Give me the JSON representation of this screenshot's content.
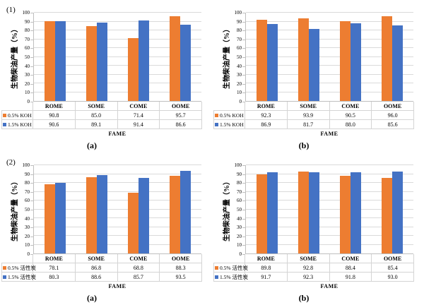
{
  "figure": {
    "group1_label": "(1)",
    "group2_label": "(2)"
  },
  "colors": {
    "series_orange": "#ED7D31",
    "series_blue": "#4472C4",
    "gridline": "#DADADA",
    "axis_line": "#BFBFBF",
    "table_border": "#D4D4D4"
  },
  "chart_data": [
    {
      "type": "bar",
      "group_label": "(1)",
      "sub_label": "(a)",
      "xlabel": "FAME",
      "ylabel": "生物柴油产量（%）",
      "ylim": [
        0,
        100
      ],
      "y_tick_step": 10,
      "grid": true,
      "legend_position": "table-left",
      "categories": [
        "ROME",
        "SOME",
        "COME",
        "OOME"
      ],
      "series": [
        {
          "name": "0.5% KOH",
          "color": "#ED7D31",
          "values": [
            90.8,
            85.0,
            71.4,
            95.7
          ]
        },
        {
          "name": "1.5% KOH",
          "color": "#4472C4",
          "values": [
            90.6,
            89.1,
            91.4,
            86.6
          ]
        }
      ]
    },
    {
      "type": "bar",
      "group_label": "",
      "sub_label": "(b)",
      "xlabel": "FAME",
      "ylabel": "生物柴油产量（%）",
      "ylim": [
        0,
        100
      ],
      "y_tick_step": 10,
      "grid": true,
      "legend_position": "table-left",
      "categories": [
        "ROME",
        "SOME",
        "COME",
        "OOME"
      ],
      "series": [
        {
          "name": "0.5% KOH",
          "color": "#ED7D31",
          "values": [
            92.3,
            93.9,
            90.5,
            96.0
          ]
        },
        {
          "name": "1.5% KOH",
          "color": "#4472C4",
          "values": [
            86.9,
            81.7,
            88.0,
            85.6
          ]
        }
      ]
    },
    {
      "type": "bar",
      "group_label": "(2)",
      "sub_label": "(a)",
      "xlabel": "FAME",
      "ylabel": "生物柴油产量（%）",
      "ylim": [
        0,
        100
      ],
      "y_tick_step": 10,
      "grid": true,
      "legend_position": "table-left",
      "categories": [
        "ROME",
        "SOME",
        "COME",
        "OOME"
      ],
      "series": [
        {
          "name": "0.5% 活性炭",
          "color": "#ED7D31",
          "values": [
            78.1,
            86.8,
            68.8,
            88.3
          ]
        },
        {
          "name": "1.5% 活性炭",
          "color": "#4472C4",
          "values": [
            80.3,
            88.6,
            85.7,
            93.5
          ]
        }
      ]
    },
    {
      "type": "bar",
      "group_label": "",
      "sub_label": "(b)",
      "xlabel": "FAME",
      "ylabel": "生物柴油产量（%）",
      "ylim": [
        0,
        100
      ],
      "y_tick_step": 10,
      "grid": true,
      "legend_position": "table-left",
      "categories": [
        "ROME",
        "SOME",
        "COME",
        "OOME"
      ],
      "series": [
        {
          "name": "0.5% 活性炭",
          "color": "#ED7D31",
          "values": [
            89.8,
            92.8,
            88.4,
            85.4
          ]
        },
        {
          "name": "1.5% 活性炭",
          "color": "#4472C4",
          "values": [
            91.7,
            92.3,
            91.8,
            93.0
          ]
        }
      ]
    }
  ]
}
